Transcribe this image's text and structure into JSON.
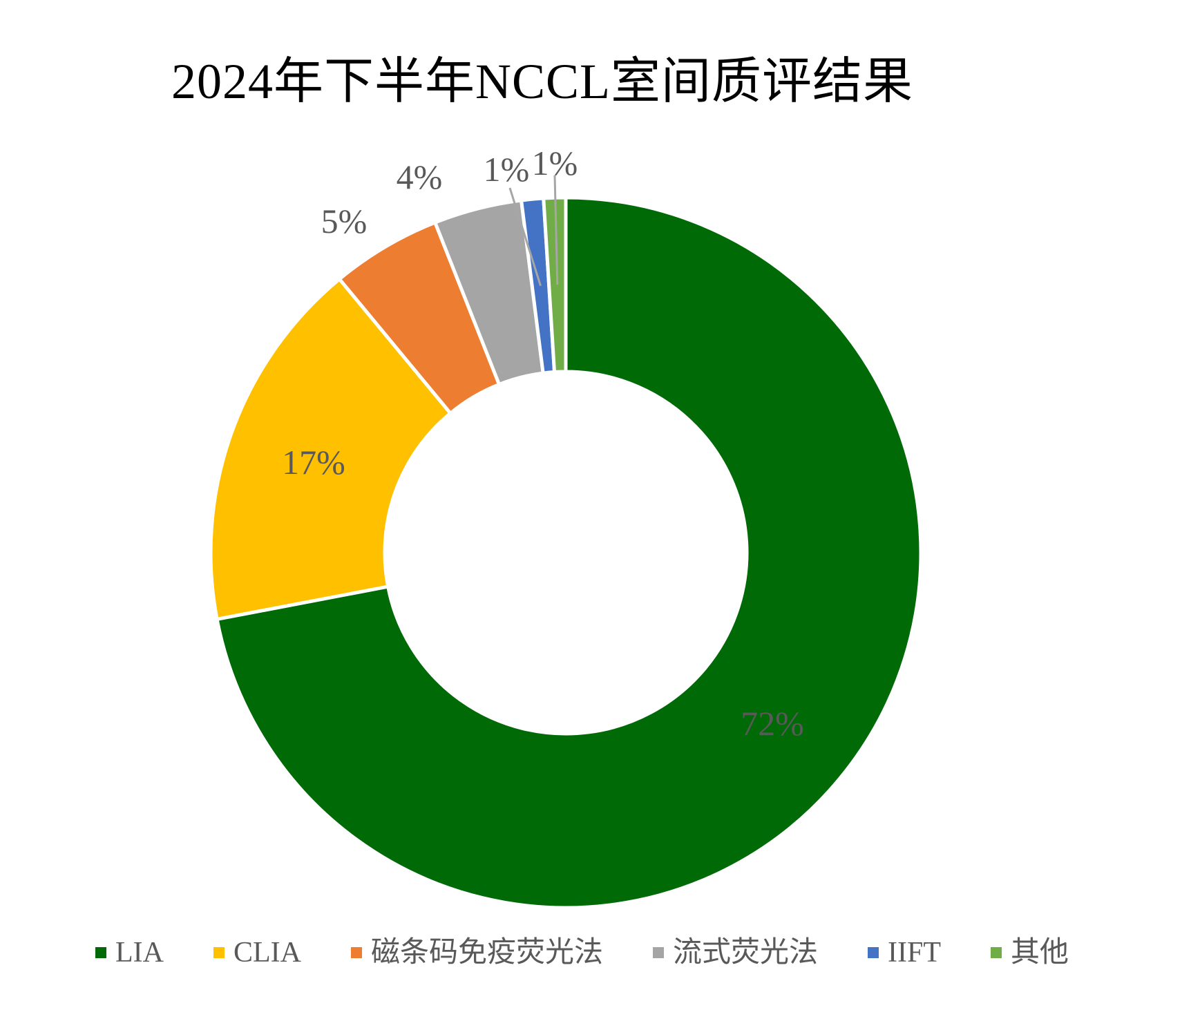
{
  "title": "2024年下半年NCCL室间质评结果",
  "chart_data": {
    "type": "pie",
    "subtype": "donut",
    "title": "2024年下半年NCCL室间质评结果",
    "categories": [
      "LIA",
      "CLIA",
      "磁条码免疫荧光法",
      "流式荧光法",
      "IIFT",
      "其他"
    ],
    "values": [
      72,
      17,
      5,
      4,
      1,
      1
    ],
    "unit": "%",
    "data_labels": [
      "72%",
      "17%",
      "5%",
      "4%",
      "1%",
      "1%"
    ],
    "colors": [
      "#006A07",
      "#FFC000",
      "#ED7D31",
      "#A5A5A5",
      "#4472C4",
      "#70AD47"
    ],
    "slice_border_color": "#FFFFFF",
    "label_color": "#595959",
    "leader_line_color": "#A6A6A6",
    "title_color": "#000000",
    "legend_text_color": "#595959",
    "background_color": "#FFFFFF",
    "start_angle_deg": 0,
    "direction": "clockwise",
    "hole_ratio": 0.51,
    "legend_position": "bottom",
    "grid": false
  }
}
